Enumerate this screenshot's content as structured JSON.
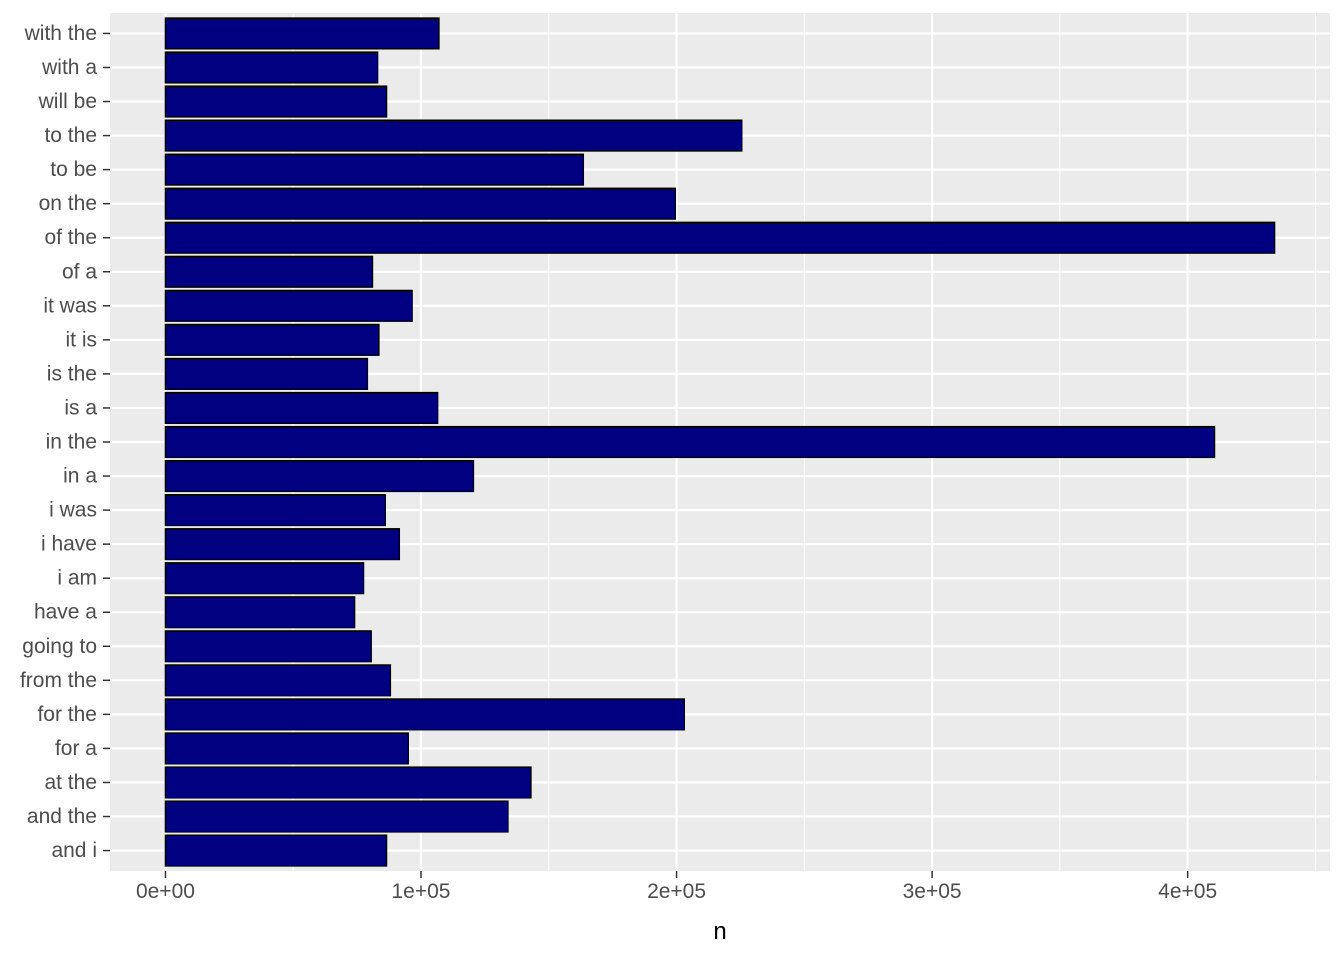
{
  "chart_data": {
    "type": "bar",
    "orientation": "horizontal",
    "title": "",
    "xlabel": "n",
    "ylabel": "",
    "xlim": [
      -21700,
      455700
    ],
    "x_ticks": [
      0,
      100000,
      200000,
      300000,
      400000
    ],
    "x_tick_labels": [
      "0e+00",
      "1e+05",
      "2e+05",
      "3e+05",
      "4e+05"
    ],
    "categories": [
      "and i",
      "and the",
      "at the",
      "for a",
      "for the",
      "from the",
      "going to",
      "have a",
      "i am",
      "i have",
      "i was",
      "in a",
      "in the",
      "is a",
      "is the",
      "it is",
      "it was",
      "of a",
      "of the",
      "on the",
      "to be",
      "to the",
      "will be",
      "with a",
      "with the"
    ],
    "values": [
      86500,
      134000,
      143000,
      95000,
      203000,
      88000,
      80500,
      74000,
      77500,
      91500,
      86000,
      120500,
      410500,
      106500,
      79000,
      83500,
      96500,
      81000,
      434000,
      199500,
      163500,
      225500,
      86500,
      83000,
      107000
    ],
    "grid": true,
    "legend": "none",
    "colors": {
      "panel": "#EBEBEB",
      "grid": "#FFFFFF",
      "bar_fill": "#000080",
      "bar_stroke": "#000000",
      "tick_text": "#4D4D4D",
      "axis_title": "#000000",
      "tick_mark": "#333333"
    }
  }
}
